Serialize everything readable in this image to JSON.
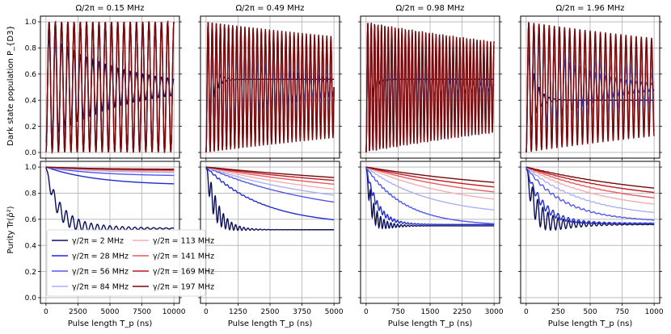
{
  "figure": {
    "ylabel_top": "Dark state population P_{D3}",
    "ylabel_bottom": "Purity Tr(ρ̂²)",
    "xlabel": "Pulse length T_p (ns)"
  },
  "legend": {
    "placement": "lower-left of bottom-left panel",
    "entries": [
      "γ/2π = 2 MHz",
      "γ/2π = 28 MHz",
      "γ/2π = 56 MHz",
      "γ/2π = 84 MHz",
      "γ/2π = 113 MHz",
      "γ/2π = 141 MHz",
      "γ/2π = 169 MHz",
      "γ/2π = 197 MHz"
    ]
  },
  "series_colors": [
    "#0a0e5a",
    "#1f2bd0",
    "#5058ec",
    "#aab0f5",
    "#f4aeb1",
    "#e85a5e",
    "#c0181e",
    "#700a0c"
  ],
  "chart_data": [
    {
      "type": "line",
      "panel": "top",
      "column": 0,
      "title": "Ω/2π = 0.15 MHz",
      "xlim": [
        0,
        10000
      ],
      "ylim": [
        0,
        1
      ],
      "xticks": [
        0,
        2500,
        5000,
        7500,
        10000
      ],
      "yticks": [
        0,
        0.2,
        0.4,
        0.6,
        0.8,
        1.0
      ],
      "grid": true,
      "series": [
        {
          "name": "γ/2π = 2 MHz",
          "omega_ns": 0.00205,
          "amp": 0.42,
          "decay_ns": 5300,
          "offset": 0.5,
          "final": 0.5
        },
        {
          "name": "γ/2π = 28 MHz",
          "omega_ns": 0.00205,
          "amp": 0.5,
          "decay_ns": 0,
          "offset": 0.5,
          "final": 0.5,
          "min_floor": 0.06
        },
        {
          "name": "γ/2π = 56 MHz",
          "omega_ns": 0.00205,
          "amp": 0.5,
          "decay_ns": 0,
          "offset": 0.5,
          "final": 0.5,
          "min_floor": 0.04
        },
        {
          "name": "γ/2π = 84 MHz",
          "omega_ns": 0.00205,
          "amp": 0.5,
          "decay_ns": 0,
          "offset": 0.5,
          "final": 0.5,
          "min_floor": 0.03
        },
        {
          "name": "γ/2π = 113 MHz",
          "omega_ns": 0.00205,
          "amp": 0.5,
          "decay_ns": 0,
          "offset": 0.5,
          "final": 0.5,
          "min_floor": 0.02
        },
        {
          "name": "γ/2π = 141 MHz",
          "omega_ns": 0.00205,
          "amp": 0.5,
          "decay_ns": 0,
          "offset": 0.5,
          "final": 0.5,
          "min_floor": 0.015
        },
        {
          "name": "γ/2π = 169 MHz",
          "omega_ns": 0.00205,
          "amp": 0.5,
          "decay_ns": 0,
          "offset": 0.5,
          "final": 0.5,
          "min_floor": 0.01
        },
        {
          "name": "γ/2π = 197 MHz",
          "omega_ns": 0.00205,
          "amp": 0.5,
          "decay_ns": 0,
          "offset": 0.5,
          "final": 0.5,
          "min_floor": 0.0
        }
      ]
    },
    {
      "type": "line",
      "panel": "top",
      "column": 1,
      "title": "Ω/2π = 0.49 MHz",
      "xlim": [
        0,
        5000
      ],
      "ylim": [
        0,
        1
      ],
      "xticks": [
        0,
        1250,
        2500,
        3750,
        5000
      ],
      "yticks": [
        0,
        0.2,
        0.4,
        0.6,
        0.8,
        1.0
      ],
      "grid": true,
      "series": [
        {
          "name": "γ/2π = 2 MHz",
          "omega_ns": 0.00625,
          "amp": 0.5,
          "decay_ns": 220,
          "offset": 0.5,
          "final": 0.56
        },
        {
          "name": "γ/2π = 28 MHz",
          "omega_ns": 0.00625,
          "amp": 0.5,
          "decay_ns": 2400,
          "offset": 0.5,
          "final": 0.5
        },
        {
          "name": "γ/2π = 56 MHz",
          "omega_ns": 0.00625,
          "amp": 0.5,
          "decay_ns": 4800,
          "offset": 0.5,
          "final": 0.5
        },
        {
          "name": "γ/2π = 84 MHz",
          "omega_ns": 0.00625,
          "amp": 0.5,
          "decay_ns": 7500,
          "offset": 0.5,
          "final": 0.5
        },
        {
          "name": "γ/2π = 113 MHz",
          "omega_ns": 0.00625,
          "amp": 0.5,
          "decay_ns": 10000,
          "offset": 0.5,
          "final": 0.5
        },
        {
          "name": "γ/2π = 141 MHz",
          "omega_ns": 0.00625,
          "amp": 0.5,
          "decay_ns": 13000,
          "offset": 0.5,
          "final": 0.5
        },
        {
          "name": "γ/2π = 169 MHz",
          "omega_ns": 0.00625,
          "amp": 0.5,
          "decay_ns": 16000,
          "offset": 0.5,
          "final": 0.5
        },
        {
          "name": "γ/2π = 197 MHz",
          "omega_ns": 0.00625,
          "amp": 0.5,
          "decay_ns": 20000,
          "offset": 0.5,
          "final": 0.5
        }
      ]
    },
    {
      "type": "line",
      "panel": "top",
      "column": 2,
      "title": "Ω/2π = 0.98 MHz",
      "xlim": [
        0,
        3000
      ],
      "ylim": [
        0,
        1
      ],
      "xticks": [
        0,
        750,
        1500,
        2250,
        3000
      ],
      "yticks": [
        0,
        0.2,
        0.4,
        0.6,
        0.8,
        1.0
      ],
      "grid": true,
      "series": [
        {
          "name": "γ/2π = 2 MHz",
          "omega_ns": 0.0125,
          "amp": 0.5,
          "decay_ns": 110,
          "offset": 0.5,
          "final": 0.56
        },
        {
          "name": "γ/2π = 28 MHz",
          "omega_ns": 0.0125,
          "amp": 0.5,
          "decay_ns": 1000,
          "offset": 0.5,
          "final": 0.5
        },
        {
          "name": "γ/2π = 56 MHz",
          "omega_ns": 0.0125,
          "amp": 0.5,
          "decay_ns": 1900,
          "offset": 0.5,
          "final": 0.5
        },
        {
          "name": "γ/2π = 84 MHz",
          "omega_ns": 0.0125,
          "amp": 0.5,
          "decay_ns": 2800,
          "offset": 0.5,
          "final": 0.5
        },
        {
          "name": "γ/2π = 113 MHz",
          "omega_ns": 0.0125,
          "amp": 0.5,
          "decay_ns": 3800,
          "offset": 0.5,
          "final": 0.5
        },
        {
          "name": "γ/2π = 141 MHz",
          "omega_ns": 0.0125,
          "amp": 0.5,
          "decay_ns": 5000,
          "offset": 0.5,
          "final": 0.5
        },
        {
          "name": "γ/2π = 169 MHz",
          "omega_ns": 0.0125,
          "amp": 0.5,
          "decay_ns": 6500,
          "offset": 0.5,
          "final": 0.5
        },
        {
          "name": "γ/2π = 197 MHz",
          "omega_ns": 0.0125,
          "amp": 0.5,
          "decay_ns": 8500,
          "offset": 0.5,
          "final": 0.5
        }
      ]
    },
    {
      "type": "line",
      "panel": "top",
      "column": 3,
      "title": "Ω/2π = 1.96 MHz",
      "xlim": [
        0,
        1000
      ],
      "ylim": [
        0,
        1
      ],
      "xticks": [
        0,
        250,
        500,
        750,
        1000
      ],
      "yticks": [
        0,
        0.2,
        0.4,
        0.6,
        0.8,
        1.0
      ],
      "grid": true,
      "series": [
        {
          "name": "γ/2π = 2 MHz",
          "omega_ns": 0.025,
          "amp": 0.5,
          "decay_ns": 55,
          "offset": 0.5,
          "final": 0.4
        },
        {
          "name": "γ/2π = 28 MHz",
          "omega_ns": 0.025,
          "amp": 0.5,
          "decay_ns": 350,
          "offset": 0.5,
          "final": 0.5
        },
        {
          "name": "γ/2π = 56 MHz",
          "omega_ns": 0.025,
          "amp": 0.5,
          "decay_ns": 650,
          "offset": 0.5,
          "final": 0.5
        },
        {
          "name": "γ/2π = 84 MHz",
          "omega_ns": 0.025,
          "amp": 0.5,
          "decay_ns": 950,
          "offset": 0.5,
          "final": 0.5
        },
        {
          "name": "γ/2π = 113 MHz",
          "omega_ns": 0.025,
          "amp": 0.5,
          "decay_ns": 1300,
          "offset": 0.5,
          "final": 0.5
        },
        {
          "name": "γ/2π = 141 MHz",
          "omega_ns": 0.025,
          "amp": 0.5,
          "decay_ns": 1800,
          "offset": 0.5,
          "final": 0.5
        },
        {
          "name": "γ/2π = 169 MHz",
          "omega_ns": 0.025,
          "amp": 0.5,
          "decay_ns": 2500,
          "offset": 0.5,
          "final": 0.5
        },
        {
          "name": "γ/2π = 197 MHz",
          "omega_ns": 0.025,
          "amp": 0.5,
          "decay_ns": 3500,
          "offset": 0.5,
          "final": 0.5
        }
      ]
    },
    {
      "type": "line",
      "panel": "bottom",
      "column": 0,
      "xlim": [
        0,
        10000
      ],
      "ylim": [
        0,
        1
      ],
      "xticks": [
        0,
        2500,
        5000,
        7500,
        10000
      ],
      "yticks": [
        0,
        0.2,
        0.4,
        0.6,
        0.8,
        1.0
      ],
      "grid": true,
      "series": [
        {
          "name": "γ/2π = 2 MHz",
          "final": 0.53,
          "tau_ns": 900,
          "ripple": 0.1,
          "omega_ns": 0.00205,
          "ripple_decay_ns": 3000
        },
        {
          "name": "γ/2π = 28 MHz",
          "final": 0.86,
          "tau_ns": 4000,
          "ripple": 0,
          "omega_ns": 0.00205,
          "ripple_decay_ns": 1
        },
        {
          "name": "γ/2π = 56 MHz",
          "final": 0.93,
          "tau_ns": 4000,
          "ripple": 0,
          "omega_ns": 0.00205,
          "ripple_decay_ns": 1
        },
        {
          "name": "γ/2π = 84 MHz",
          "final": 0.955,
          "tau_ns": 4000,
          "ripple": 0,
          "omega_ns": 0.00205,
          "ripple_decay_ns": 1
        },
        {
          "name": "γ/2π = 113 MHz",
          "final": 0.965,
          "tau_ns": 4000,
          "ripple": 0,
          "omega_ns": 0.00205,
          "ripple_decay_ns": 1
        },
        {
          "name": "γ/2π = 141 MHz",
          "final": 0.972,
          "tau_ns": 4000,
          "ripple": 0,
          "omega_ns": 0.00205,
          "ripple_decay_ns": 1
        },
        {
          "name": "γ/2π = 169 MHz",
          "final": 0.978,
          "tau_ns": 4000,
          "ripple": 0,
          "omega_ns": 0.00205,
          "ripple_decay_ns": 1
        },
        {
          "name": "γ/2π = 197 MHz",
          "final": 0.982,
          "tau_ns": 4000,
          "ripple": 0,
          "omega_ns": 0.00205,
          "ripple_decay_ns": 1
        }
      ]
    },
    {
      "type": "line",
      "panel": "bottom",
      "column": 1,
      "xlim": [
        0,
        5000
      ],
      "ylim": [
        0,
        1
      ],
      "xticks": [
        0,
        1250,
        2500,
        3750,
        5000
      ],
      "yticks": [
        0,
        0.2,
        0.4,
        0.6,
        0.8,
        1.0
      ],
      "grid": true,
      "series": [
        {
          "name": "γ/2π = 2 MHz",
          "final": 0.52,
          "tau_ns": 350,
          "ripple": 0.22,
          "omega_ns": 0.00625,
          "ripple_decay_ns": 500
        },
        {
          "name": "γ/2π = 28 MHz",
          "final": 0.55,
          "tau_ns": 2200,
          "ripple": 0.05,
          "omega_ns": 0.00625,
          "ripple_decay_ns": 700
        },
        {
          "name": "γ/2π = 56 MHz",
          "final": 0.6,
          "tau_ns": 4500,
          "ripple": 0.03,
          "omega_ns": 0.00625,
          "ripple_decay_ns": 800
        },
        {
          "name": "γ/2π = 84 MHz",
          "final": 0.66,
          "tau_ns": 5000,
          "ripple": 0.02,
          "omega_ns": 0.00625,
          "ripple_decay_ns": 800
        },
        {
          "name": "γ/2π = 113 MHz",
          "final": 0.7,
          "tau_ns": 6000,
          "ripple": 0.015,
          "omega_ns": 0.00625,
          "ripple_decay_ns": 800
        },
        {
          "name": "γ/2π = 141 MHz",
          "final": 0.73,
          "tau_ns": 7500,
          "ripple": 0.01,
          "omega_ns": 0.00625,
          "ripple_decay_ns": 800
        },
        {
          "name": "γ/2π = 169 MHz",
          "final": 0.76,
          "tau_ns": 9000,
          "ripple": 0.01,
          "omega_ns": 0.00625,
          "ripple_decay_ns": 800
        },
        {
          "name": "γ/2π = 197 MHz",
          "final": 0.78,
          "tau_ns": 11000,
          "ripple": 0.008,
          "omega_ns": 0.00625,
          "ripple_decay_ns": 800
        }
      ]
    },
    {
      "type": "line",
      "panel": "bottom",
      "column": 2,
      "xlim": [
        0,
        3000
      ],
      "ylim": [
        0,
        1
      ],
      "xticks": [
        0,
        750,
        1500,
        2250,
        3000
      ],
      "yticks": [
        0,
        0.2,
        0.4,
        0.6,
        0.8,
        1.0
      ],
      "grid": true,
      "series": [
        {
          "name": "γ/2π = 2 MHz",
          "final": 0.55,
          "tau_ns": 120,
          "ripple": 0.14,
          "omega_ns": 0.0125,
          "ripple_decay_ns": 300
        },
        {
          "name": "γ/2π = 28 MHz",
          "final": 0.56,
          "tau_ns": 250,
          "ripple": 0.06,
          "omega_ns": 0.0125,
          "ripple_decay_ns": 400
        },
        {
          "name": "γ/2π = 56 MHz",
          "final": 0.55,
          "tau_ns": 900,
          "ripple": 0.03,
          "omega_ns": 0.0125,
          "ripple_decay_ns": 500
        },
        {
          "name": "γ/2π = 84 MHz",
          "final": 0.62,
          "tau_ns": 1500,
          "ripple": 0.02,
          "omega_ns": 0.0125,
          "ripple_decay_ns": 500
        },
        {
          "name": "γ/2π = 113 MHz",
          "final": 0.67,
          "tau_ns": 2200,
          "ripple": 0.015,
          "omega_ns": 0.0125,
          "ripple_decay_ns": 500
        },
        {
          "name": "γ/2π = 141 MHz",
          "final": 0.71,
          "tau_ns": 2800,
          "ripple": 0.012,
          "omega_ns": 0.0125,
          "ripple_decay_ns": 500
        },
        {
          "name": "γ/2π = 169 MHz",
          "final": 0.74,
          "tau_ns": 3400,
          "ripple": 0.01,
          "omega_ns": 0.0125,
          "ripple_decay_ns": 500
        },
        {
          "name": "γ/2π = 197 MHz",
          "final": 0.77,
          "tau_ns": 4200,
          "ripple": 0.008,
          "omega_ns": 0.0125,
          "ripple_decay_ns": 500
        }
      ]
    },
    {
      "type": "line",
      "panel": "bottom",
      "column": 3,
      "xlim": [
        0,
        1000
      ],
      "ylim": [
        0,
        1
      ],
      "xticks": [
        0,
        250,
        500,
        750,
        1000
      ],
      "yticks": [
        0,
        0.2,
        0.4,
        0.6,
        0.8,
        1.0
      ],
      "grid": true,
      "series": [
        {
          "name": "γ/2π = 2 MHz",
          "final": 0.56,
          "tau_ns": 60,
          "ripple": 0.16,
          "omega_ns": 0.025,
          "ripple_decay_ns": 200
        },
        {
          "name": "γ/2π = 28 MHz",
          "final": 0.57,
          "tau_ns": 120,
          "ripple": 0.06,
          "omega_ns": 0.025,
          "ripple_decay_ns": 250
        },
        {
          "name": "γ/2π = 56 MHz",
          "final": 0.58,
          "tau_ns": 300,
          "ripple": 0.03,
          "omega_ns": 0.025,
          "ripple_decay_ns": 300
        },
        {
          "name": "γ/2π = 84 MHz",
          "final": 0.61,
          "tau_ns": 450,
          "ripple": 0.02,
          "omega_ns": 0.025,
          "ripple_decay_ns": 300
        },
        {
          "name": "γ/2π = 113 MHz",
          "final": 0.65,
          "tau_ns": 600,
          "ripple": 0.015,
          "omega_ns": 0.025,
          "ripple_decay_ns": 300
        },
        {
          "name": "γ/2π = 141 MHz",
          "final": 0.68,
          "tau_ns": 750,
          "ripple": 0.012,
          "omega_ns": 0.025,
          "ripple_decay_ns": 300
        },
        {
          "name": "γ/2π = 169 MHz",
          "final": 0.71,
          "tau_ns": 900,
          "ripple": 0.01,
          "omega_ns": 0.025,
          "ripple_decay_ns": 300
        },
        {
          "name": "γ/2π = 197 MHz",
          "final": 0.73,
          "tau_ns": 1100,
          "ripple": 0.008,
          "omega_ns": 0.025,
          "ripple_decay_ns": 300
        }
      ]
    }
  ]
}
